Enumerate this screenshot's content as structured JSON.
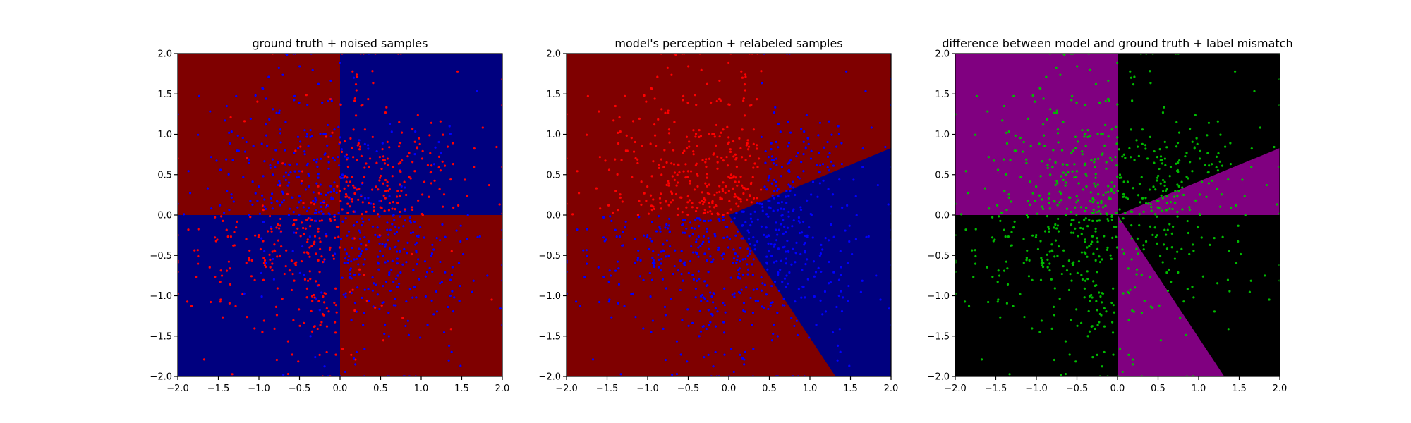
{
  "chart_data": [
    {
      "type": "scatter",
      "title": "ground truth + noised samples",
      "xlim": [
        -2.0,
        2.0
      ],
      "ylim": [
        -2.0,
        2.0
      ],
      "xticks": [
        "−2.0",
        "−1.5",
        "−1.0",
        "−0.5",
        "0.0",
        "0.5",
        "1.0",
        "1.5",
        "2.0"
      ],
      "yticks": [
        "−2.0",
        "−1.5",
        "−1.0",
        "−0.5",
        "0.0",
        "0.5",
        "1.0",
        "1.5",
        "2.0"
      ],
      "xtick_values": [
        -2.0,
        -1.5,
        -1.0,
        -0.5,
        0.0,
        0.5,
        1.0,
        1.5,
        2.0
      ],
      "ytick_values": [
        -2.0,
        -1.5,
        -1.0,
        -0.5,
        0.0,
        0.5,
        1.0,
        1.5,
        2.0
      ],
      "background": "xor-quadrants",
      "region_colors": {
        "positive": "#7f0000",
        "negative": "#00007f"
      },
      "point_colors": {
        "class_a": "#ff0000",
        "class_b": "#0000ff"
      },
      "point_count": 1000
    },
    {
      "type": "scatter",
      "title": "model's perception + relabeled samples",
      "xlim": [
        -2.0,
        2.0
      ],
      "ylim": [
        -2.0,
        2.0
      ],
      "xticks": [
        "−2.0",
        "−1.5",
        "−1.0",
        "−0.5",
        "0.0",
        "0.5",
        "1.0",
        "1.5",
        "2.0"
      ],
      "yticks": [
        "−2.0",
        "−1.5",
        "−1.0",
        "−0.5",
        "0.0",
        "0.5",
        "1.0",
        "1.5",
        "2.0"
      ],
      "xtick_values": [
        -2.0,
        -1.5,
        -1.0,
        -0.5,
        0.0,
        0.5,
        1.0,
        1.5,
        2.0
      ],
      "ytick_values": [
        -2.0,
        -1.5,
        -1.0,
        -0.5,
        0.0,
        0.5,
        1.0,
        1.5,
        2.0
      ],
      "background": "model-wedge",
      "wedge_boundaries": {
        "upper_line_slope": 0.415,
        "lower_line_slope": -1.52
      },
      "region_colors": {
        "positive": "#7f0000",
        "negative": "#00007f"
      },
      "point_colors": {
        "class_a": "#ff0000",
        "class_b": "#0000ff"
      },
      "point_count": 1000
    },
    {
      "type": "scatter",
      "title": "difference between model and ground truth + label mismatch",
      "xlim": [
        -2.0,
        2.0
      ],
      "ylim": [
        -2.0,
        2.0
      ],
      "xticks": [
        "−2.0",
        "−1.5",
        "−1.0",
        "−0.5",
        "0.0",
        "0.5",
        "1.0",
        "1.5",
        "2.0"
      ],
      "yticks": [
        "−2.0",
        "−1.5",
        "−1.0",
        "−0.5",
        "0.0",
        "0.5",
        "1.0",
        "1.5",
        "2.0"
      ],
      "xtick_values": [
        -2.0,
        -1.5,
        -1.0,
        -0.5,
        0.0,
        0.5,
        1.0,
        1.5,
        2.0
      ],
      "ytick_values": [
        -2.0,
        -1.5,
        -1.0,
        -0.5,
        0.0,
        0.5,
        1.0,
        1.5,
        2.0
      ],
      "background": "difference",
      "region_colors": {
        "mismatch": "#800080",
        "match": "#000000"
      },
      "point_colors": {
        "mismatch_sample": "#00bb00"
      },
      "point_count": 500
    }
  ]
}
